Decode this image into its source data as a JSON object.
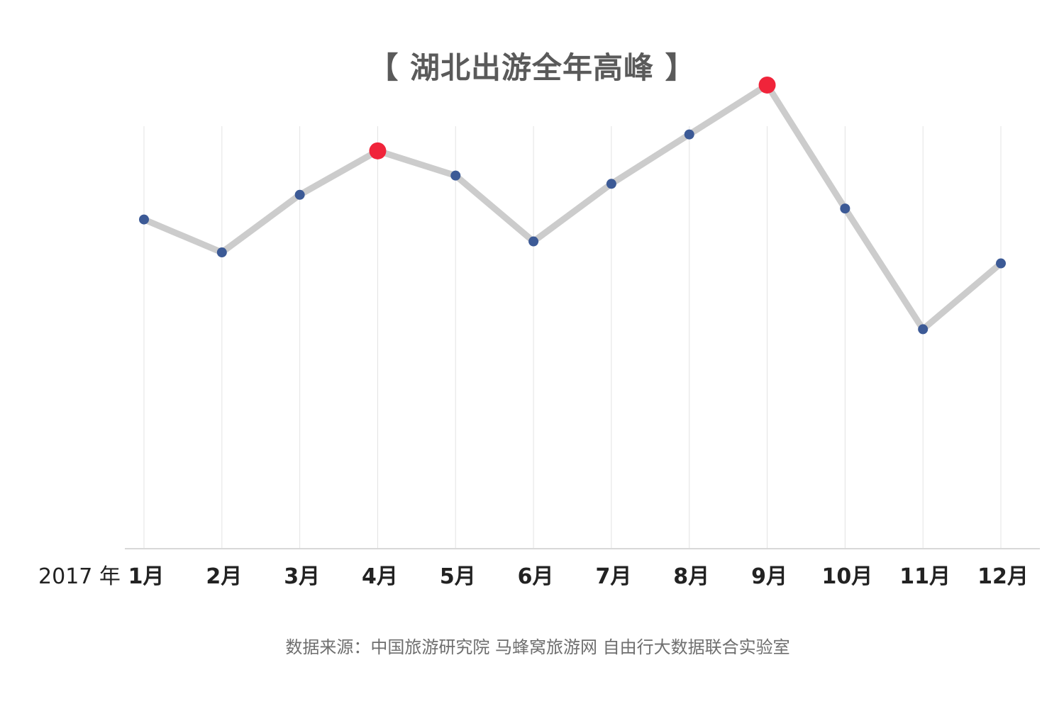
{
  "chart_data": {
    "type": "line",
    "title": "【 湖北出游全年高峰 】",
    "year_label": "2017 年",
    "categories": [
      "1月",
      "2月",
      "3月",
      "4月",
      "5月",
      "6月",
      "7月",
      "8月",
      "9月",
      "10月",
      "11月",
      "12月"
    ],
    "series": [
      {
        "values": [
          60,
          54,
          64.5,
          72.5,
          68,
          56,
          66.5,
          75.5,
          84.5,
          62,
          40,
          52
        ]
      }
    ],
    "highlight_indices": [
      3,
      8
    ],
    "ylim": [
      0,
      100
    ],
    "grid": "vertical",
    "legend": "none",
    "yaxis": "hidden",
    "colors": {
      "line": "#cccccc",
      "point": "#3c5a96",
      "highlight": "#f0243a",
      "grid": "#e3e3e3",
      "axis": "#d8d8d8",
      "category_text": "#222222"
    }
  },
  "source": "数据来源：中国旅游研究院 马蜂窝旅游网 自由行大数据联合实验室"
}
